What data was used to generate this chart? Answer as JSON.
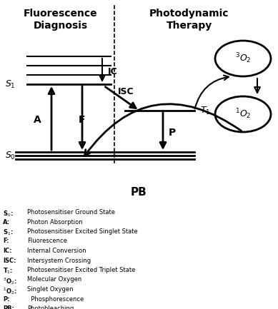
{
  "bg_color": "#ffffff",
  "text_color": "#000000",
  "legend_items": [
    [
      "S$_0$:",
      "Photosensitiser Ground State"
    ],
    [
      "A:",
      "Photon Absorption"
    ],
    [
      "S$_1$:",
      "Photosensitiser Excited Singlet State"
    ],
    [
      "F:",
      "Fluorescence"
    ],
    [
      "IC:",
      "Internal Conversion"
    ],
    [
      "ISC:",
      "Intersystem Crossing"
    ],
    [
      "T$_1$:",
      "Photosensitiser Excited Triplet State"
    ],
    [
      "$^3$O$_2$:",
      "Molecular Oxygen"
    ],
    [
      "$^1$O$_2$:",
      "Singlet Oxygen"
    ],
    [
      "P:",
      "  Phosphorescence"
    ],
    [
      "PB:",
      "Photobleaching"
    ]
  ]
}
